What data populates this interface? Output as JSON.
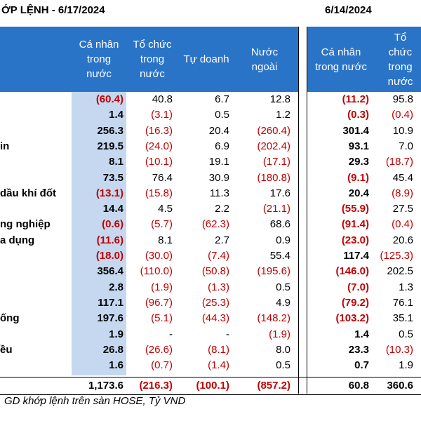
{
  "title_left": "ỚP LỆNH - 6/17/2024",
  "title_right": "6/14/2024",
  "headers_left": [
    "Cá nhân\ntrong\nnước",
    "Tổ chức\ntrong\nnước",
    "Tự doanh",
    "Nước\nngoài"
  ],
  "headers_right": [
    "Cá nhân\ntrong nước",
    "Tổ\nchức\ntrong\nnước"
  ],
  "rows": [
    {
      "label": "",
      "v": [
        "(60.4)",
        "40.8",
        "6.7",
        "12.8"
      ],
      "w": [
        "(11.2)",
        "95.8"
      ]
    },
    {
      "label": "",
      "v": [
        "1.4",
        "(3.1)",
        "0.5",
        "1.2"
      ],
      "w": [
        "(0.3)",
        "(0.4)"
      ]
    },
    {
      "label": "",
      "v": [
        "256.3",
        "(16.3)",
        "20.4",
        "(260.4)"
      ],
      "w": [
        "301.4",
        "10.9"
      ]
    },
    {
      "label": "in",
      "v": [
        "219.5",
        "(24.0)",
        "6.9",
        "(202.4)"
      ],
      "w": [
        "93.1",
        "7.0"
      ]
    },
    {
      "label": "",
      "v": [
        "8.1",
        "(10.1)",
        "19.1",
        "(17.1)"
      ],
      "w": [
        "29.3",
        "(18.7)"
      ]
    },
    {
      "label": "",
      "v": [
        "73.5",
        "76.4",
        "30.9",
        "(180.8)"
      ],
      "w": [
        "(9.1)",
        "45.4"
      ]
    },
    {
      "label": "dầu khí đốt",
      "v": [
        "(13.1)",
        "(15.8)",
        "11.3",
        "17.6"
      ],
      "w": [
        "20.4",
        "(8.9)"
      ]
    },
    {
      "label": "",
      "v": [
        "14.4",
        "4.5",
        "2.2",
        "(21.1)"
      ],
      "w": [
        "(55.9)",
        "27.5"
      ]
    },
    {
      "label": "ng nghiệp",
      "v": [
        "(0.6)",
        "(5.7)",
        "(62.3)",
        "68.6"
      ],
      "w": [
        "(91.4)",
        "(0.4)"
      ]
    },
    {
      "label": "a dụng",
      "v": [
        "(11.6)",
        "8.1",
        "2.7",
        "0.9"
      ],
      "w": [
        "(23.0)",
        "20.6"
      ]
    },
    {
      "label": "",
      "v": [
        "(18.0)",
        "(30.0)",
        "(7.4)",
        "55.4"
      ],
      "w": [
        "117.4",
        "(125.3)"
      ]
    },
    {
      "label": "",
      "v": [
        "356.4",
        "(110.0)",
        "(50.8)",
        "(195.6)"
      ],
      "w": [
        "(146.0)",
        "202.5"
      ]
    },
    {
      "label": "",
      "v": [
        "2.8",
        "(1.9)",
        "(1.3)",
        "0.5"
      ],
      "w": [
        "(7.0)",
        "1.3"
      ]
    },
    {
      "label": "",
      "v": [
        "117.1",
        "(96.7)",
        "(25.3)",
        "4.9"
      ],
      "w": [
        "(79.2)",
        "76.1"
      ]
    },
    {
      "label": "ống",
      "v": [
        "197.6",
        "(5.1)",
        "(44.3)",
        "(148.2)"
      ],
      "w": [
        "(103.2)",
        "35.1"
      ]
    },
    {
      "label": "",
      "v": [
        "1.9",
        "-",
        "-",
        "(1.9)"
      ],
      "w": [
        "1.4",
        "0.5"
      ]
    },
    {
      "label": "ều",
      "v": [
        "26.8",
        "(26.6)",
        "(8.1)",
        "8.0"
      ],
      "w": [
        "23.3",
        "(10.3)"
      ]
    },
    {
      "label": "",
      "v": [
        "1.6",
        "(0.7)",
        "(1.4)",
        "0.5"
      ],
      "w": [
        "0.7",
        "1.9"
      ]
    }
  ],
  "total": {
    "v": [
      "1,173.6",
      "(216.3)",
      "(100.1)",
      "(857.2)"
    ],
    "w": [
      "60.8",
      "360.6"
    ]
  },
  "note": "GD khớp lệnh trên sàn HOSE, Tỷ VND"
}
